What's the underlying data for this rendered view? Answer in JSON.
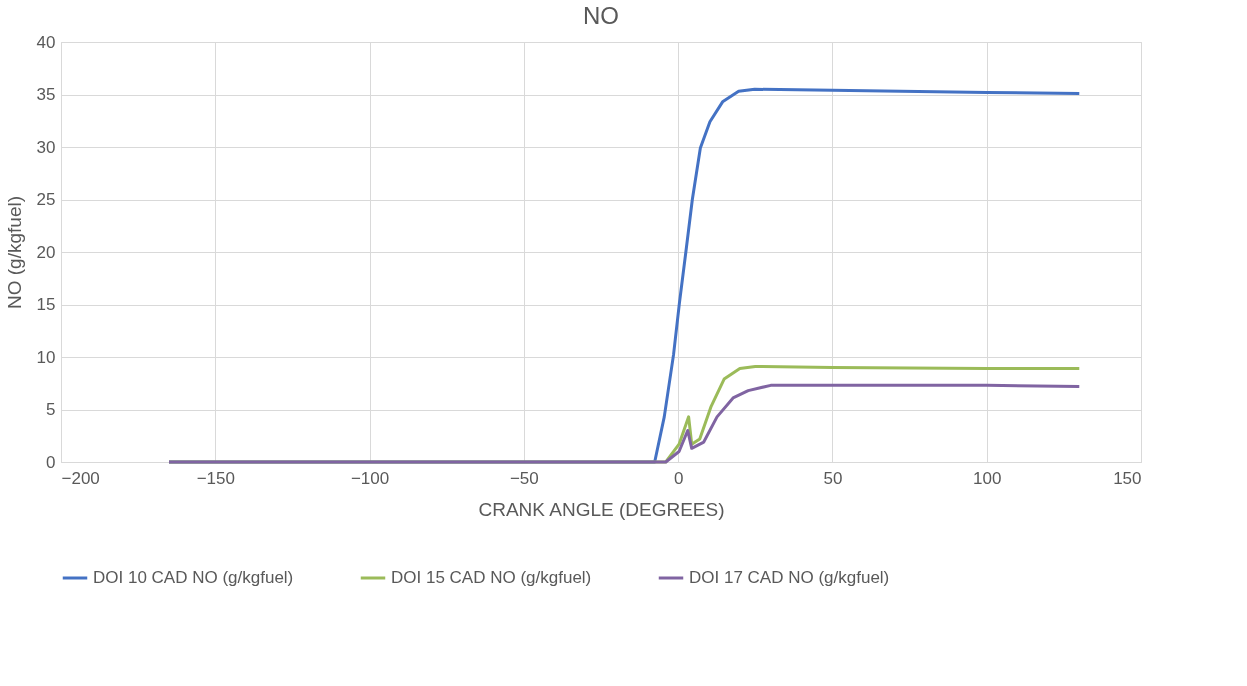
{
  "chart_data": {
    "type": "line",
    "title": "NO",
    "xlabel": "CRANK ANGLE (DEGREES)",
    "ylabel": "NO (g/kgfuel)",
    "xlim": [
      -200,
      150
    ],
    "xticks": [
      -200,
      -150,
      -100,
      -50,
      0,
      50,
      100,
      150
    ],
    "ylim": [
      0,
      40
    ],
    "yticks": [
      0,
      5,
      10,
      15,
      20,
      25,
      30,
      35,
      40
    ],
    "grid": true,
    "legend": "bottom",
    "marker": "none",
    "line_style": "solid",
    "series": [
      {
        "name": "DOI 10 CAD NO (g/kgfuel)",
        "color": "#4472c4",
        "x": [
          -165,
          -50,
          -10,
          -7.6,
          -4.5,
          -1.5,
          0.4,
          2.5,
          4.6,
          7.2,
          10.3,
          14.4,
          19.6,
          24.8,
          50,
          100,
          130
        ],
        "values": [
          0,
          0,
          0,
          0,
          4.3,
          10.2,
          15.1,
          20,
          25,
          29.9,
          32.4,
          34.3,
          35.3,
          35.5,
          35.4,
          35.2,
          35.1
        ]
      },
      {
        "name": "DOI 15 CAD NO (g/kgfuel)",
        "color": "#9bbb59",
        "x": [
          -165,
          -50,
          -4,
          0.3,
          3.4,
          4.4,
          7,
          10.7,
          14.9,
          20,
          25,
          50,
          100,
          130
        ],
        "values": [
          0,
          0,
          0,
          1.7,
          4.3,
          1.7,
          2.2,
          5.3,
          7.9,
          8.9,
          9.1,
          9.0,
          8.9,
          8.9
        ]
      },
      {
        "name": "DOI 17 CAD NO (g/kgfuel)",
        "color": "#8064a2",
        "x": [
          -165,
          -50,
          -4,
          0.3,
          3.1,
          4.4,
          8.3,
          12.6,
          17.8,
          22.7,
          30,
          50,
          100,
          130
        ],
        "values": [
          0,
          0,
          0,
          1.0,
          3.0,
          1.3,
          1.9,
          4.3,
          6.1,
          6.8,
          7.3,
          7.3,
          7.3,
          7.2
        ]
      }
    ]
  }
}
